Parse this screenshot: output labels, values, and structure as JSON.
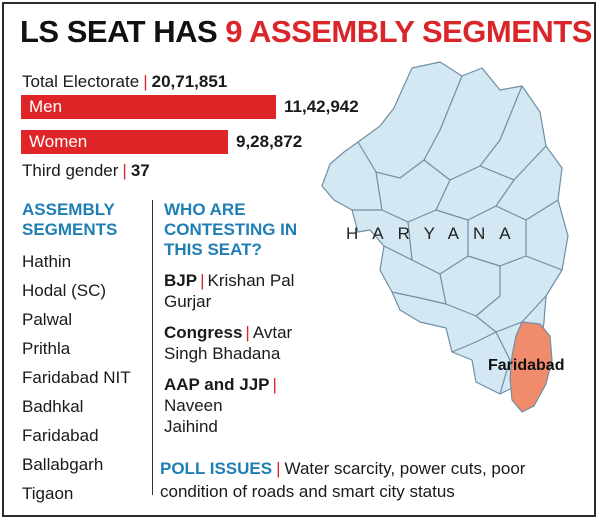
{
  "title": {
    "part1": "LS SEAT HAS",
    "part2": "9 ASSEMBLY SEGMENTS"
  },
  "electorate": {
    "total_label": "Total Electorate",
    "total_value": "20,71,851",
    "men_label": "Men",
    "men_value": "11,42,942",
    "men_count": 1142942,
    "women_label": "Women",
    "women_value": "9,28,872",
    "women_count": 928872,
    "third_label": "Third gender",
    "third_value": "37",
    "separator": "|"
  },
  "segments": {
    "heading_line1": "ASSEMBLY",
    "heading_line2": "SEGMENTS",
    "items": [
      "Hathin",
      "Hodal (SC)",
      "Palwal",
      "Prithla",
      "Faridabad NIT",
      "Badhkal",
      "Faridabad",
      "Ballabgarh",
      "Tigaon"
    ]
  },
  "contesting": {
    "heading_line1": "WHO ARE",
    "heading_line2": "CONTESTING IN",
    "heading_line3": "THIS SEAT?",
    "candidates": [
      {
        "party": "BJP",
        "name_line1": "Krishan Pal",
        "name_line2": "Gurjar"
      },
      {
        "party": "Congress",
        "name_line1": "Avtar",
        "name_line2": "Singh Bhadana"
      },
      {
        "party": "AAP and JJP",
        "name_line1": "",
        "name_line2": "Naveen",
        "name_line3": "Jaihind"
      }
    ]
  },
  "poll": {
    "label": "POLL ISSUES",
    "text_line1": "Water scarcity, power cuts, poor",
    "text_line2": "condition of roads and smart city status"
  },
  "map": {
    "state_label": "HARYANA",
    "highlight_label": "Faridabad",
    "colors": {
      "state_fill": "#d3e8f3",
      "border": "#6f8fa3",
      "highlight": "#f08c6c"
    }
  },
  "colors": {
    "accent_red": "#e02528",
    "accent_blue": "#1f7fb5"
  }
}
